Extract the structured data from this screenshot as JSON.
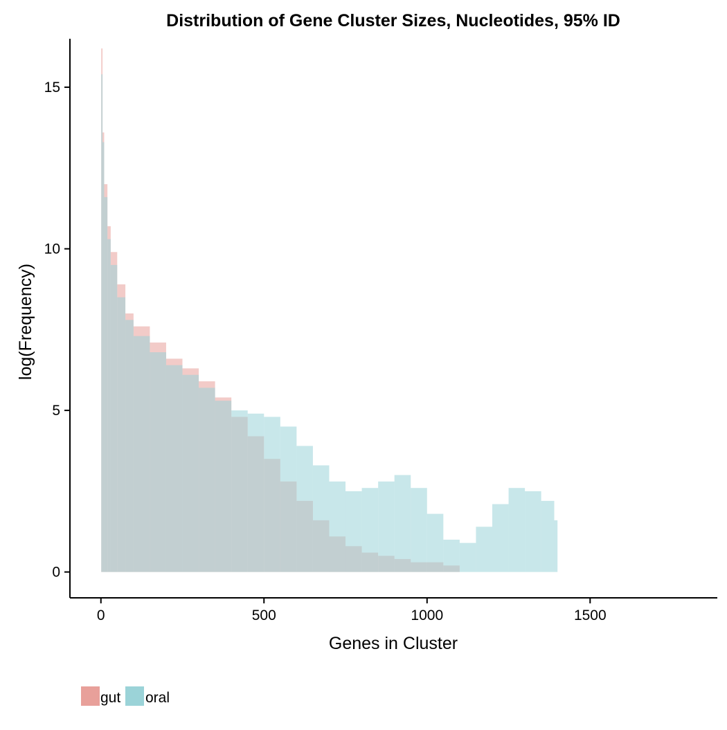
{
  "chart_data": {
    "type": "bar",
    "title": "Distribution of Gene Cluster Sizes, Nucleotides, 95% ID",
    "xlabel": "Genes in Cluster",
    "ylabel": "log(Frequency)",
    "xlim": [
      -95,
      1890
    ],
    "ylim": [
      -0.8,
      16.5
    ],
    "x_ticks": [
      0,
      500,
      1000,
      1500
    ],
    "x_tick_labels": [
      "0",
      "500",
      "1000",
      "1500"
    ],
    "y_ticks": [
      0,
      5,
      10,
      15
    ],
    "y_tick_labels": [
      "0",
      "5",
      "10",
      "15"
    ],
    "grid": false,
    "legend": {
      "position": "bottom-left",
      "entries": [
        "gut",
        "oral"
      ]
    },
    "x": [
      1,
      5,
      10,
      20,
      30,
      50,
      75,
      100,
      150,
      200,
      250,
      300,
      350,
      400,
      450,
      500,
      550,
      600,
      650,
      700,
      750,
      800,
      850,
      900,
      950,
      1000,
      1050,
      1100,
      1150,
      1200,
      1250,
      1300,
      1350,
      1390
    ],
    "series": [
      {
        "name": "gut",
        "color": "#E8A09A",
        "values": [
          16.2,
          13.6,
          12.0,
          10.7,
          9.9,
          8.9,
          8.0,
          7.6,
          7.1,
          6.6,
          6.3,
          5.9,
          5.4,
          4.8,
          4.2,
          3.5,
          2.8,
          2.2,
          1.6,
          1.1,
          0.8,
          0.6,
          0.5,
          0.4,
          0.3,
          0.3,
          0.2,
          0.0,
          0.0,
          0.0,
          0.0,
          0.0,
          0.0,
          0.0
        ]
      },
      {
        "name": "oral",
        "color": "#9BD3D8",
        "values": [
          15.4,
          13.3,
          11.6,
          10.3,
          9.5,
          8.5,
          7.8,
          7.3,
          6.8,
          6.4,
          6.1,
          5.7,
          5.3,
          5.0,
          4.9,
          4.8,
          4.5,
          3.9,
          3.3,
          2.8,
          2.5,
          2.6,
          2.8,
          3.0,
          2.6,
          1.8,
          1.0,
          0.9,
          1.4,
          2.1,
          2.6,
          2.5,
          2.2,
          1.6
        ]
      }
    ]
  }
}
